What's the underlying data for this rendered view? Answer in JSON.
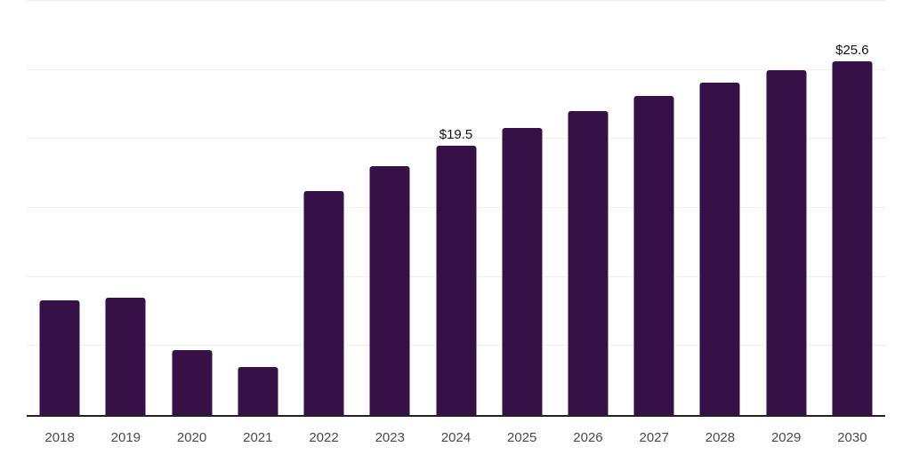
{
  "chart": {
    "background_color": "#ffffff",
    "bar_color": "#351148",
    "grid_color": "#efefef",
    "axis_color": "#222222",
    "tick_label_color": "#4a4a4a",
    "data_label_color": "#111111"
  },
  "chart_data": {
    "type": "bar",
    "title": "",
    "xlabel": "",
    "ylabel": "",
    "categories": [
      "2018",
      "2019",
      "2020",
      "2021",
      "2022",
      "2023",
      "2024",
      "2025",
      "2026",
      "2027",
      "2028",
      "2029",
      "2030"
    ],
    "values": [
      8.3,
      8.5,
      4.7,
      3.5,
      16.2,
      18.0,
      19.5,
      20.8,
      22.0,
      23.1,
      24.1,
      25.0,
      25.6
    ],
    "ylim": [
      0,
      30
    ],
    "grid": true,
    "gridline_step": 5,
    "legend": "none",
    "annotations": [
      {
        "category": "2024",
        "text": "$19.5"
      },
      {
        "category": "2030",
        "text": "$25.6"
      }
    ]
  }
}
